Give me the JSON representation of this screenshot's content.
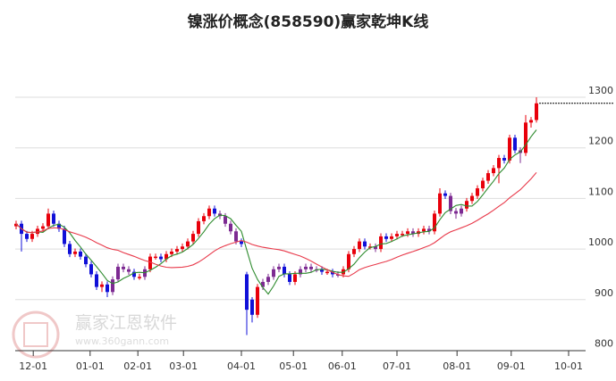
{
  "chart_data": {
    "type": "candlestick",
    "title": "镍涨价概念(858590)赢家乾坤K线",
    "ylim": [
      800,
      1400
    ],
    "yticks": [
      800,
      900,
      1000,
      1100,
      1200,
      1300
    ],
    "grid": true,
    "xticks": [
      {
        "label": "12-01",
        "index": 3.2
      },
      {
        "label": "01-01",
        "index": 13.8
      },
      {
        "label": "02-01",
        "index": 22.7
      },
      {
        "label": "03-01",
        "index": 31.2
      },
      {
        "label": "04-01",
        "index": 42
      },
      {
        "label": "05-01",
        "index": 51.7
      },
      {
        "label": "06-01",
        "index": 60.8
      },
      {
        "label": "07-01",
        "index": 71
      },
      {
        "label": "08-01",
        "index": 82.2
      },
      {
        "label": "09-01",
        "index": 92.3
      },
      {
        "label": "10-01",
        "index": 103
      }
    ],
    "ohlc": [
      [
        1045,
        1056,
        1039,
        1050
      ],
      [
        1050,
        1056,
        995,
        1030
      ],
      [
        1030,
        1036,
        1014,
        1020
      ],
      [
        1020,
        1036,
        1014,
        1030
      ],
      [
        1030,
        1046,
        1024,
        1040
      ],
      [
        1040,
        1051,
        1034,
        1045
      ],
      [
        1045,
        1080,
        1039,
        1070
      ],
      [
        1070,
        1076,
        1044,
        1050
      ],
      [
        1050,
        1056,
        1034,
        1040
      ],
      [
        1040,
        1046,
        1004,
        1010
      ],
      [
        1010,
        1016,
        984,
        990
      ],
      [
        990,
        1001,
        984,
        995
      ],
      [
        995,
        1001,
        979,
        985
      ],
      [
        985,
        991,
        964,
        970
      ],
      [
        970,
        976,
        944,
        950
      ],
      [
        950,
        956,
        919,
        925
      ],
      [
        925,
        936,
        915,
        930
      ],
      [
        930,
        936,
        905,
        915
      ],
      [
        915,
        946,
        909,
        940
      ],
      [
        940,
        971,
        934,
        965
      ],
      [
        965,
        971,
        954,
        960
      ],
      [
        960,
        966,
        949,
        955
      ],
      [
        955,
        961,
        939,
        945
      ],
      [
        945,
        951,
        939,
        945
      ],
      [
        945,
        966,
        939,
        960
      ],
      [
        960,
        991,
        954,
        985
      ],
      [
        985,
        991,
        979,
        985
      ],
      [
        985,
        991,
        974,
        980
      ],
      [
        980,
        996,
        974,
        990
      ],
      [
        990,
        1001,
        984,
        995
      ],
      [
        995,
        1006,
        989,
        1000
      ],
      [
        1000,
        1011,
        994,
        1005
      ],
      [
        1005,
        1021,
        999,
        1015
      ],
      [
        1015,
        1036,
        1009,
        1030
      ],
      [
        1030,
        1061,
        1024,
        1055
      ],
      [
        1055,
        1071,
        1049,
        1065
      ],
      [
        1065,
        1086,
        1059,
        1080
      ],
      [
        1080,
        1086,
        1064,
        1070
      ],
      [
        1070,
        1076,
        1059,
        1065
      ],
      [
        1065,
        1071,
        1044,
        1050
      ],
      [
        1050,
        1056,
        1029,
        1035
      ],
      [
        1035,
        1041,
        1009,
        1015
      ],
      [
        1015,
        1021,
        1004,
        1010
      ],
      [
        950,
        955,
        830,
        880
      ],
      [
        900,
        905,
        855,
        870
      ],
      [
        870,
        931,
        864,
        925
      ],
      [
        925,
        941,
        919,
        935
      ],
      [
        935,
        951,
        929,
        945
      ],
      [
        945,
        966,
        939,
        960
      ],
      [
        960,
        971,
        954,
        965
      ],
      [
        965,
        971,
        944,
        950
      ],
      [
        950,
        956,
        929,
        935
      ],
      [
        935,
        956,
        929,
        950
      ],
      [
        950,
        966,
        944,
        960
      ],
      [
        960,
        971,
        954,
        965
      ],
      [
        965,
        971,
        954,
        960
      ],
      [
        960,
        966,
        954,
        960
      ],
      [
        960,
        966,
        949,
        955
      ],
      [
        955,
        961,
        949,
        955
      ],
      [
        955,
        961,
        944,
        950
      ],
      [
        950,
        956,
        944,
        950
      ],
      [
        950,
        966,
        944,
        960
      ],
      [
        960,
        996,
        954,
        990
      ],
      [
        990,
        1006,
        984,
        1000
      ],
      [
        1000,
        1021,
        994,
        1015
      ],
      [
        1015,
        1021,
        999,
        1005
      ],
      [
        1005,
        1011,
        999,
        1005
      ],
      [
        1005,
        1011,
        994,
        1000
      ],
      [
        1000,
        1031,
        994,
        1025
      ],
      [
        1025,
        1031,
        1014,
        1020
      ],
      [
        1020,
        1031,
        1014,
        1025
      ],
      [
        1025,
        1036,
        1019,
        1030
      ],
      [
        1030,
        1036,
        1024,
        1030
      ],
      [
        1030,
        1041,
        1024,
        1035
      ],
      [
        1035,
        1041,
        1024,
        1030
      ],
      [
        1030,
        1041,
        1024,
        1035
      ],
      [
        1035,
        1046,
        1029,
        1040
      ],
      [
        1040,
        1046,
        1029,
        1035
      ],
      [
        1035,
        1076,
        1029,
        1070
      ],
      [
        1070,
        1120,
        1064,
        1110
      ],
      [
        1110,
        1116,
        1099,
        1105
      ],
      [
        1105,
        1111,
        1069,
        1075
      ],
      [
        1075,
        1081,
        1060,
        1070
      ],
      [
        1070,
        1086,
        1064,
        1080
      ],
      [
        1080,
        1101,
        1074,
        1095
      ],
      [
        1095,
        1111,
        1089,
        1105
      ],
      [
        1105,
        1126,
        1099,
        1120
      ],
      [
        1120,
        1141,
        1114,
        1135
      ],
      [
        1135,
        1156,
        1129,
        1150
      ],
      [
        1150,
        1166,
        1144,
        1160
      ],
      [
        1160,
        1186,
        1130,
        1180
      ],
      [
        1180,
        1186,
        1169,
        1175
      ],
      [
        1175,
        1226,
        1169,
        1220
      ],
      [
        1220,
        1226,
        1189,
        1195
      ],
      [
        1195,
        1201,
        1170,
        1190
      ],
      [
        1190,
        1265,
        1184,
        1250
      ],
      [
        1250,
        1261,
        1240,
        1255
      ],
      [
        1255,
        1300,
        1250,
        1288
      ]
    ],
    "moving_averages": [
      {
        "window": 5,
        "color": "#2e8b2e"
      },
      {
        "window": 20,
        "color": "#e8394a"
      }
    ],
    "colors": {
      "up": "#e8000b",
      "down": "#1010d8",
      "neutral": "#7d2a92",
      "grid": "#dddddd",
      "last_price_line": "#000000"
    }
  },
  "watermark": {
    "text": "赢家江恩软件",
    "url": "www.360gann.com",
    "logo_text": "江恩"
  }
}
